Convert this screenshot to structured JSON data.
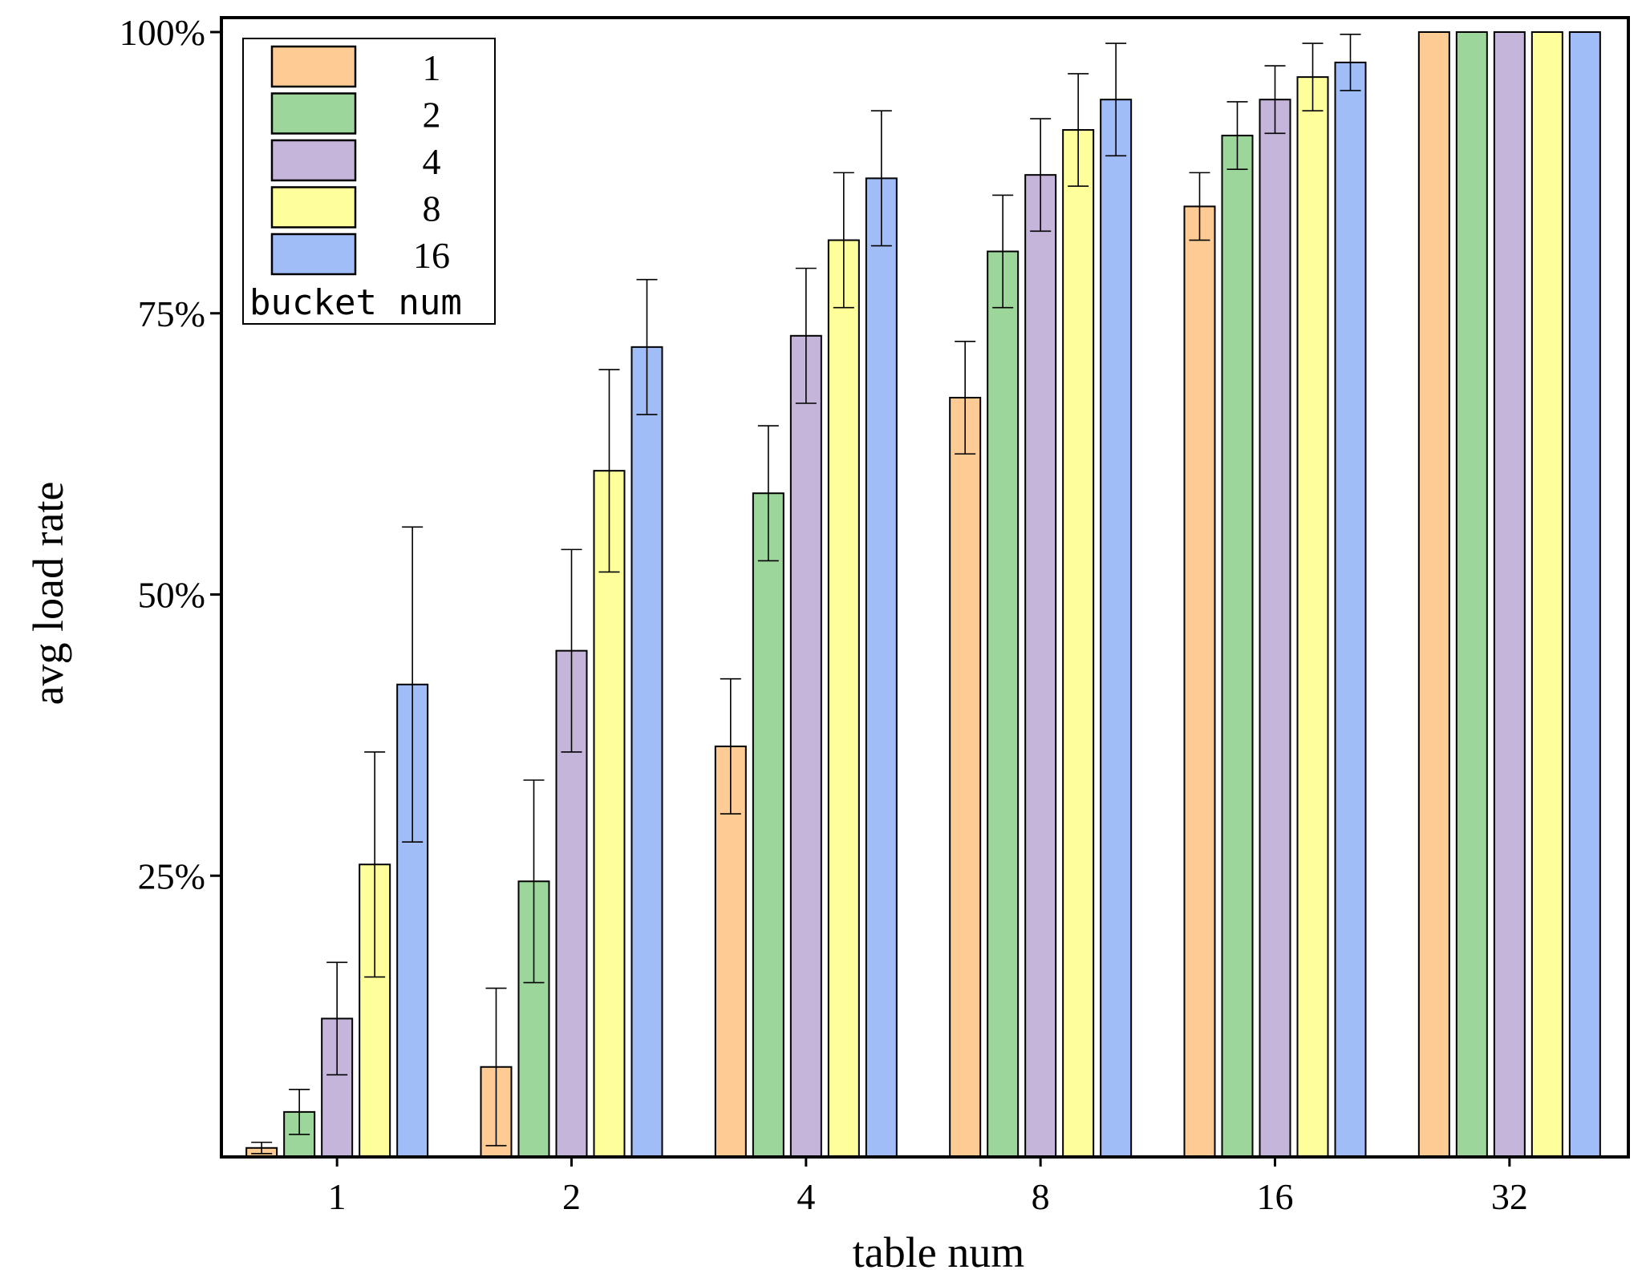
{
  "chart_data": {
    "type": "bar",
    "title": "",
    "xlabel": "table num",
    "ylabel": "avg load rate",
    "categories": [
      "1",
      "2",
      "4",
      "8",
      "16",
      "32"
    ],
    "ylim": [
      0,
      100
    ],
    "yticks": [
      25,
      50,
      75,
      100
    ],
    "ytick_labels": [
      "25%",
      "50%",
      "75%",
      "100%"
    ],
    "grid": false,
    "legend": {
      "title": "bucket num",
      "position": "top-left"
    },
    "series": [
      {
        "name": "1",
        "color": "#FDCB93",
        "values": [
          0.8,
          8,
          36.5,
          67.5,
          84.5,
          100
        ],
        "errors": [
          0.5,
          7,
          6,
          5,
          3,
          0
        ]
      },
      {
        "name": "2",
        "color": "#9CD69A",
        "values": [
          4,
          24.5,
          59,
          80.5,
          90.8,
          100
        ],
        "errors": [
          2,
          9,
          6,
          5,
          3,
          0
        ]
      },
      {
        "name": "4",
        "color": "#C5B5DA",
        "values": [
          12.3,
          45,
          73,
          87.3,
          94,
          100
        ],
        "errors": [
          5,
          9,
          6,
          5,
          3,
          0
        ]
      },
      {
        "name": "8",
        "color": "#FEFE9B",
        "values": [
          26,
          61,
          81.5,
          91.3,
          96,
          100
        ],
        "errors": [
          10,
          9,
          6,
          5,
          3,
          0
        ]
      },
      {
        "name": "16",
        "color": "#A0BDF8",
        "values": [
          42,
          72,
          87,
          94,
          97.3,
          100
        ],
        "errors": [
          14,
          6,
          6,
          5,
          2.5,
          0
        ]
      }
    ]
  }
}
